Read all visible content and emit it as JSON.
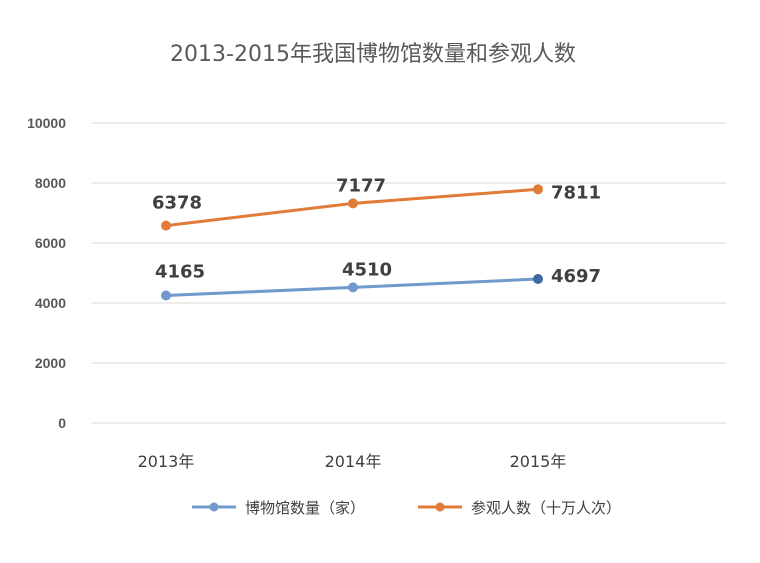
{
  "chart_data": {
    "type": "line",
    "title": "2013-2015年我国博物馆数量和参观人数",
    "categories": [
      "2013年",
      "2014年",
      "2015年"
    ],
    "series": [
      {
        "name": "博物馆数量（家）",
        "values": [
          4165,
          4510,
          4697
        ],
        "plot_values": [
          4250,
          4520,
          4800
        ],
        "labels": [
          "4165",
          "4510",
          "4697"
        ],
        "color": "#6f9acb"
      },
      {
        "name": "参观人数（十万人次）",
        "values": [
          6378,
          7177,
          7811
        ],
        "plot_values": [
          6580,
          7320,
          7790
        ],
        "labels": [
          "6378",
          "7177",
          "7811"
        ],
        "color": "#e07b39"
      }
    ],
    "yticks": [
      "0",
      "2000",
      "4000",
      "6000",
      "8000",
      "10000"
    ],
    "ylim": [
      0,
      10000
    ],
    "grid": true,
    "legend_position": "bottom"
  }
}
